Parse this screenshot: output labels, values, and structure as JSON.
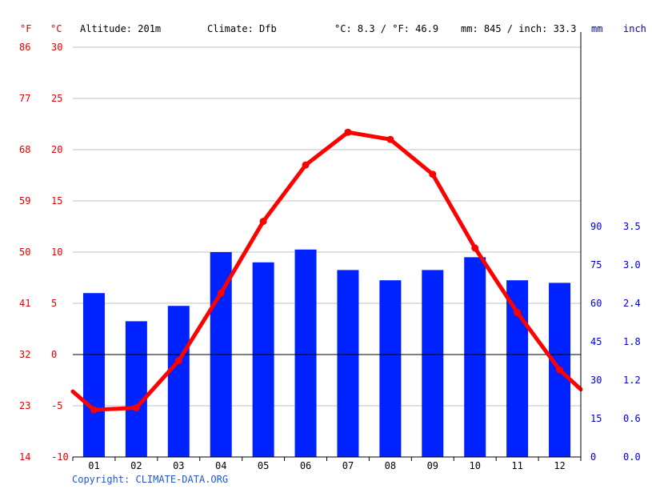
{
  "header": {
    "unit_f": "°F",
    "unit_c": "°C",
    "altitude": "Altitude: 201m",
    "climate": "Climate: Dfb",
    "temp_avg": "°C: 8.3 / °F: 46.9",
    "precip_total": "mm: 845 / inch: 33.3",
    "unit_mm": "mm",
    "unit_inch": "inch"
  },
  "copyright": "Copyright: CLIMATE-DATA.ORG",
  "colors": {
    "temp_axis": "#e00000",
    "precip_axis": "#0000cc",
    "bar": "#0022ff",
    "line": "#ff0000",
    "grid": "#c0c0c0",
    "zero": "#000000"
  },
  "chart_data": {
    "type": "bar+line",
    "categories": [
      "01",
      "02",
      "03",
      "04",
      "05",
      "06",
      "07",
      "08",
      "09",
      "10",
      "11",
      "12"
    ],
    "series": [
      {
        "type": "bar",
        "axis": "precip",
        "values": [
          64,
          53,
          59,
          80,
          76,
          81,
          73,
          69,
          73,
          78,
          69,
          68
        ]
      },
      {
        "type": "line",
        "axis": "temp",
        "values": [
          -5.4,
          -5.2,
          -0.6,
          6.0,
          13.0,
          18.5,
          21.7,
          21.0,
          17.6,
          10.4,
          4.1,
          -1.5
        ]
      }
    ],
    "line_edge_values": {
      "start": -3.6,
      "end": -3.4
    },
    "temp_axis": {
      "range": [
        -10,
        30
      ],
      "ticks_c": [
        "30",
        "25",
        "20",
        "15",
        "10",
        "5",
        "0",
        "-5",
        "-10"
      ],
      "ticks_f": [
        "86",
        "77",
        "68",
        "59",
        "50",
        "41",
        "32",
        "23",
        "14"
      ]
    },
    "precip_axis": {
      "range": [
        0,
        160
      ],
      "ticks_mm": [
        "90",
        "75",
        "60",
        "45",
        "30",
        "15",
        "0"
      ],
      "ticks_inch": [
        "3.5",
        "3.0",
        "2.4",
        "1.8",
        "1.2",
        "0.6",
        "0.0"
      ]
    },
    "grid": true
  }
}
